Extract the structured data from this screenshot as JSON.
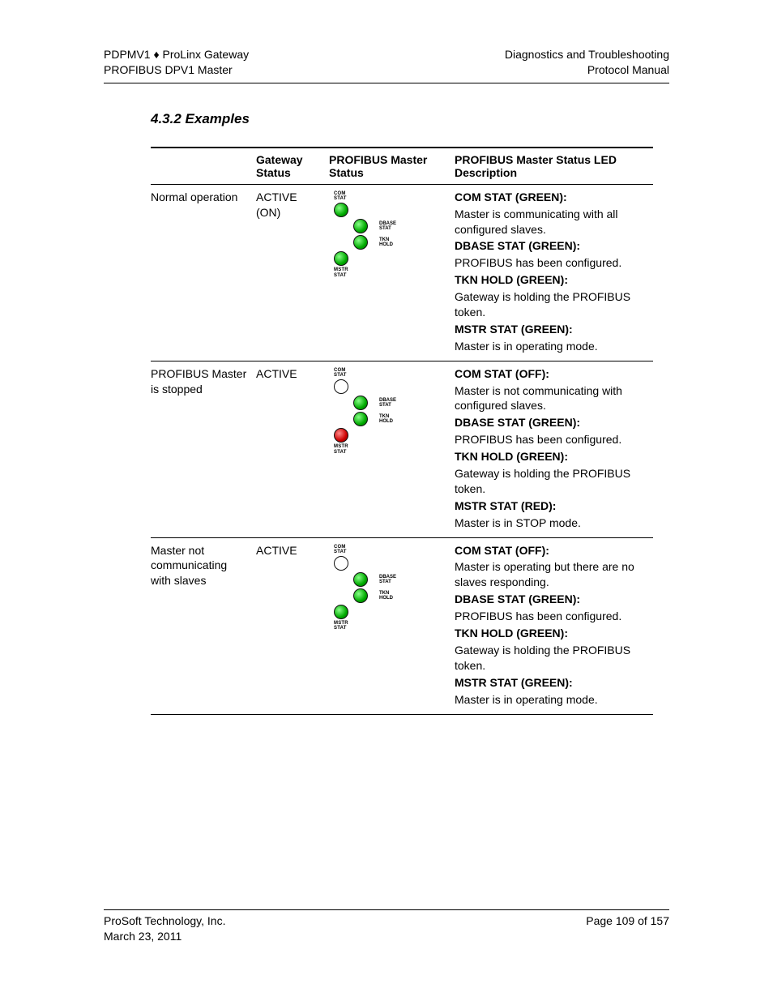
{
  "header": {
    "left_line1": "PDPMV1 ♦ ProLinx Gateway",
    "left_line2": "PROFIBUS DPV1 Master",
    "right_line1": "Diagnostics and Troubleshooting",
    "right_line2": "Protocol Manual"
  },
  "section_title": "4.3.2  Examples",
  "columns": {
    "c1": "",
    "c2": "Gateway Status",
    "c3": "PROFIBUS Master Status",
    "c4": "PROFIBUS Master Status LED Description"
  },
  "led_labels": {
    "top": "COM\nSTAT",
    "dbase": "DBASE\nSTAT",
    "tkn": "TKN\nHOLD",
    "bottom": "MSTR\nSTAT"
  },
  "led_colors": {
    "green": "#0a0",
    "red": "#c00",
    "off": "#ffffff",
    "border": "#111111"
  },
  "rows": [
    {
      "condition": "Normal operation",
      "gateway_status": "ACTIVE (ON)",
      "leds": {
        "com": "green",
        "dbase": "green",
        "tkn": "green",
        "mstr": "green"
      },
      "desc": [
        {
          "bold": "COM STAT (GREEN):"
        },
        {
          "text": "Master is communicating with all configured slaves."
        },
        {
          "bold": "DBASE STAT (GREEN):"
        },
        {
          "text": "PROFIBUS has been configured."
        },
        {
          "bold": "TKN HOLD (GREEN):"
        },
        {
          "text": "Gateway is holding the PROFIBUS token."
        },
        {
          "bold": "MSTR STAT (GREEN):"
        },
        {
          "text": "Master is in operating mode."
        }
      ]
    },
    {
      "condition": "PROFIBUS Master is stopped",
      "gateway_status": "ACTIVE",
      "leds": {
        "com": "off",
        "dbase": "green",
        "tkn": "green",
        "mstr": "red"
      },
      "desc": [
        {
          "bold": "COM STAT (OFF):"
        },
        {
          "text": "Master is not communicating with configured slaves."
        },
        {
          "bold": "DBASE STAT (GREEN):"
        },
        {
          "text": "PROFIBUS has been configured."
        },
        {
          "bold": "TKN HOLD (GREEN):"
        },
        {
          "text": "Gateway is holding the PROFIBUS token."
        },
        {
          "bold": "MSTR STAT (RED):"
        },
        {
          "text": "Master is in STOP mode."
        }
      ]
    },
    {
      "condition": "Master not communicating with slaves",
      "gateway_status": "ACTIVE",
      "leds": {
        "com": "off",
        "dbase": "green",
        "tkn": "green",
        "mstr": "green"
      },
      "desc": [
        {
          "bold": "COM STAT (OFF):"
        },
        {
          "text": "Master is operating but there are no slaves responding."
        },
        {
          "bold": "DBASE STAT (GREEN):"
        },
        {
          "text": "PROFIBUS has been configured."
        },
        {
          "bold": "TKN HOLD (GREEN):"
        },
        {
          "text": "Gateway is holding the PROFIBUS token."
        },
        {
          "bold": "MSTR STAT (GREEN):"
        },
        {
          "text": "Master is in operating mode."
        }
      ]
    }
  ],
  "footer": {
    "left_line1": "ProSoft Technology, Inc.",
    "left_line2": "March 23, 2011",
    "right_line1": "Page 109 of 157"
  }
}
